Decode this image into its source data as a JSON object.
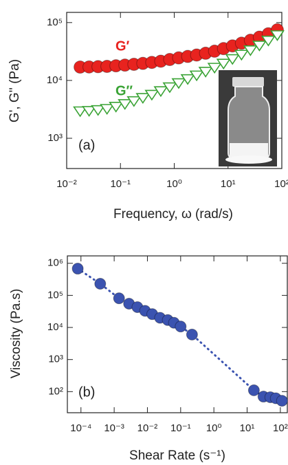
{
  "chart_data": [
    {
      "type": "scatter",
      "log_x": true,
      "log_y": true,
      "xlabel": "Frequency, ω (rad/s)",
      "ylabel": "G', G'' (Pa)",
      "annotations": [
        "G′",
        "G″",
        "(a)"
      ],
      "xlim": [
        0.01,
        100
      ],
      "ylim": [
        300,
        150000
      ],
      "xticks": [
        {
          "value": 0.01,
          "label": "10⁻²"
        },
        {
          "value": 0.1,
          "label": "10⁻¹"
        },
        {
          "value": 1,
          "label": "10⁰"
        },
        {
          "value": 10,
          "label": "10¹"
        },
        {
          "value": 100,
          "label": "10²"
        }
      ],
      "yticks": [
        {
          "value": 1000,
          "label": "10³"
        },
        {
          "value": 10000,
          "label": "10⁴"
        },
        {
          "value": 100000,
          "label": "10⁵"
        }
      ],
      "x": [
        0.0178,
        0.0261,
        0.0383,
        0.0562,
        0.0825,
        0.121,
        0.178,
        0.261,
        0.383,
        0.562,
        0.825,
        1.21,
        1.78,
        2.61,
        3.83,
        5.62,
        8.25,
        12.1,
        17.8,
        26.1,
        38.3,
        56.2,
        82.5
      ],
      "series": [
        {
          "marker": "circle",
          "color": "#e8231f",
          "values": [
            17000,
            17100,
            17300,
            17500,
            17900,
            18400,
            19000,
            19700,
            20500,
            21500,
            23000,
            24500,
            26000,
            27500,
            29500,
            32000,
            35500,
            39500,
            44000,
            49500,
            56000,
            64000,
            75000
          ]
        },
        {
          "marker": "triangle-down",
          "color": "#3aa335",
          "values": [
            3000,
            3050,
            3150,
            3300,
            3600,
            4000,
            4500,
            5100,
            5800,
            6700,
            7800,
            9200,
            10800,
            12500,
            14500,
            17000,
            20000,
            24000,
            28500,
            34000,
            41000,
            50000,
            62000
          ]
        }
      ]
    },
    {
      "type": "scatter",
      "log_x": true,
      "log_y": true,
      "line_style": "dotted",
      "xlabel": "Shear Rate (s⁻¹)",
      "ylabel": "Viscosity (Pa.s)",
      "annotations": [
        "(b)"
      ],
      "xlim": [
        3.9e-05,
        162
      ],
      "ylim": [
        22,
        1700000
      ],
      "xticks": [
        {
          "value": 0.0001,
          "label": "10⁻⁴"
        },
        {
          "value": 0.001,
          "label": "10⁻³"
        },
        {
          "value": 0.01,
          "label": "10⁻²"
        },
        {
          "value": 0.1,
          "label": "10⁻¹"
        },
        {
          "value": 1,
          "label": "10⁰"
        },
        {
          "value": 10,
          "label": "10¹"
        },
        {
          "value": 100,
          "label": "10²"
        }
      ],
      "yticks": [
        {
          "value": 100,
          "label": "10²"
        },
        {
          "value": 1000,
          "label": "10³"
        },
        {
          "value": 10000,
          "label": "10⁴"
        },
        {
          "value": 100000,
          "label": "10⁵"
        },
        {
          "value": 1000000,
          "label": "10⁶"
        }
      ],
      "x": [
        8e-05,
        0.00038,
        0.0014,
        0.0028,
        0.005,
        0.0085,
        0.014,
        0.024,
        0.041,
        0.063,
        0.1,
        0.22,
        16,
        31,
        50,
        73,
        112
      ],
      "series": [
        {
          "marker": "circle",
          "color": "#3b53b0",
          "values": [
            680000,
            230000,
            81000,
            55000,
            43000,
            33000,
            26000,
            20000,
            17000,
            14000,
            10700,
            6000,
            110,
            70,
            67,
            62,
            52
          ]
        }
      ]
    }
  ]
}
